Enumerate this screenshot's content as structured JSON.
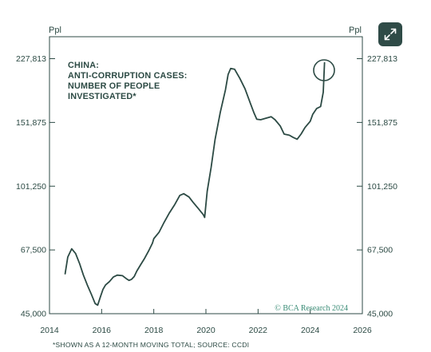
{
  "toolbar": {
    "expand_icon": "expand-icon"
  },
  "chart_data": {
    "type": "line",
    "title_lines": [
      "CHINA:",
      "ANTI-CORRUPTION CASES:",
      "NUMBER OF PEOPLE",
      "INVESTIGATED*"
    ],
    "ylabel_left": "Ppl",
    "ylabel_right": "Ppl",
    "y_scale": "log",
    "ylim": [
      45000,
      250000
    ],
    "xlim": [
      2014,
      2026
    ],
    "x_ticks": [
      "2014",
      "2016",
      "2018",
      "2020",
      "2022",
      "2024",
      "2026"
    ],
    "y_ticks": [
      "45,000",
      "67,500",
      "101,250",
      "151,875",
      "227,813"
    ],
    "y_tick_values": [
      45000,
      67500,
      101250,
      151875,
      227813
    ],
    "footnote": "*SHOWN AS A 12-MONTH MOVING TOTAL; SOURCE: CCDI",
    "watermark": "© BCA Research 2024",
    "annotation": "circle-at-latest-point",
    "grid": false,
    "series": [
      {
        "color": "#2c4a44",
        "x": [
          2014.6,
          2014.7,
          2014.85,
          2015.0,
          2015.15,
          2015.3,
          2015.45,
          2015.6,
          2015.75,
          2015.85,
          2015.95,
          2016.05,
          2016.15,
          2016.3,
          2016.45,
          2016.6,
          2016.8,
          2016.95,
          2017.05,
          2017.15,
          2017.25,
          2017.35,
          2017.5,
          2017.65,
          2017.8,
          2017.95,
          2018.0,
          2018.2,
          2018.4,
          2018.6,
          2018.8,
          2019.0,
          2019.15,
          2019.35,
          2019.5,
          2019.7,
          2019.9,
          2019.95,
          2020.05,
          2020.2,
          2020.35,
          2020.55,
          2020.75,
          2020.85,
          2020.95,
          2021.1,
          2021.3,
          2021.5,
          2021.7,
          2021.85,
          2021.95,
          2022.1,
          2022.3,
          2022.5,
          2022.65,
          2022.85,
          2023.0,
          2023.2,
          2023.35,
          2023.5,
          2023.65,
          2023.8,
          2024.0,
          2024.1,
          2024.25,
          2024.4,
          2024.5,
          2024.55
        ],
        "values": [
          58000,
          64500,
          68000,
          66000,
          62000,
          57500,
          54000,
          51000,
          48000,
          47500,
          50000,
          52500,
          54000,
          55200,
          56800,
          57500,
          57300,
          56200,
          55600,
          56000,
          57000,
          59000,
          61500,
          64000,
          67000,
          70500,
          72500,
          75500,
          80500,
          85500,
          90000,
          95500,
          96500,
          94500,
          91500,
          88000,
          84500,
          83000,
          98000,
          114000,
          136000,
          162000,
          187000,
          206000,
          214000,
          213000,
          201000,
          188000,
          172000,
          161000,
          155000,
          154500,
          156000,
          157500,
          154500,
          148500,
          141000,
          140000,
          138000,
          136500,
          141000,
          147000,
          153000,
          160000,
          166000,
          168000,
          184000,
          222000
        ]
      }
    ]
  }
}
